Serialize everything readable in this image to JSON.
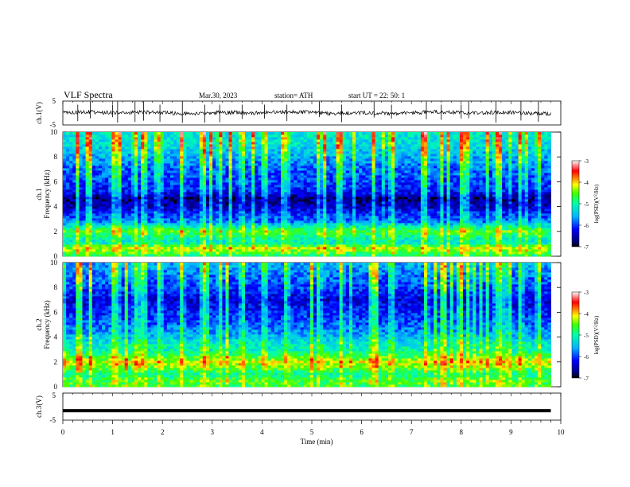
{
  "header": {
    "title": "VLF  Spectra",
    "date": "Mar.30, 2023",
    "station": "station= ATH",
    "start": "start  UT  =    22: 50: 1"
  },
  "chart_data": [
    {
      "type": "line",
      "name": "ch1-waveform",
      "ylabel": "ch.1(V)",
      "ylim": [
        -5,
        5
      ],
      "yticks": [
        "5",
        "-5"
      ],
      "xlim": [
        0,
        10
      ],
      "spikes_min": [
        0.3,
        0.55,
        1.0,
        1.1,
        1.45,
        1.62,
        1.95,
        2.4,
        2.85,
        3.15,
        3.6,
        4.05,
        4.5,
        5.15,
        5.6,
        6.25,
        6.6,
        7.3,
        7.6,
        8.0,
        8.15,
        8.7,
        9.2,
        9.55
      ]
    },
    {
      "type": "heatmap",
      "name": "ch1-spectrogram",
      "ylabel": "ch.1\nFrequency  (kHz)",
      "xlim": [
        0,
        10
      ],
      "ylim": [
        0,
        10
      ],
      "yticks": [
        "0",
        "2",
        "4",
        "6",
        "8",
        "10"
      ],
      "colorbar": {
        "label": "log(PSD)(V²/Hz)",
        "ticks": [
          "-3",
          "-4",
          "-5",
          "-6",
          "-7"
        ],
        "range": [
          -7,
          -3
        ]
      },
      "freq_profile_khz": [
        [
          0,
          -5.0
        ],
        [
          0.3,
          -4.6
        ],
        [
          0.7,
          -4.3
        ],
        [
          1.1,
          -5.2
        ],
        [
          1.6,
          -5.0
        ],
        [
          2.0,
          -4.6
        ],
        [
          2.3,
          -5.0
        ],
        [
          2.8,
          -5.8
        ],
        [
          3.4,
          -6.1
        ],
        [
          4.0,
          -6.5
        ],
        [
          4.7,
          -6.7
        ],
        [
          5.2,
          -6.2
        ],
        [
          6.0,
          -6.0
        ],
        [
          7.0,
          -5.9
        ],
        [
          8.0,
          -5.6
        ],
        [
          9.0,
          -5.3
        ],
        [
          10,
          -5.2
        ]
      ]
    },
    {
      "type": "heatmap",
      "name": "ch2-spectrogram",
      "ylabel": "ch.2\nFrequency  (kHz)",
      "xlim": [
        0,
        10
      ],
      "ylim": [
        0,
        10
      ],
      "yticks": [
        "0",
        "2",
        "4",
        "6",
        "8",
        "10"
      ],
      "colorbar": {
        "label": "log(PSD)(V²/Hz)",
        "ticks": [
          "-3",
          "-4",
          "-5",
          "-6",
          "-7"
        ],
        "range": [
          -7,
          -3
        ]
      },
      "freq_profile_khz": [
        [
          0,
          -4.7
        ],
        [
          0.5,
          -4.6
        ],
        [
          1.0,
          -5.0
        ],
        [
          1.6,
          -4.5
        ],
        [
          2.0,
          -4.2
        ],
        [
          2.5,
          -4.7
        ],
        [
          3.0,
          -5.1
        ],
        [
          3.5,
          -5.2
        ],
        [
          4.0,
          -5.5
        ],
        [
          5.0,
          -5.9
        ],
        [
          6.0,
          -6.1
        ],
        [
          7.0,
          -6.4
        ],
        [
          8.0,
          -6.0
        ],
        [
          9.0,
          -5.8
        ],
        [
          10,
          -5.6
        ]
      ]
    },
    {
      "type": "line",
      "name": "ch3-waveform",
      "ylabel": "ch.3(V)",
      "ylim": [
        -5,
        5
      ],
      "yticks": [
        "5",
        "-5"
      ],
      "xlim": [
        0,
        10
      ],
      "level_v": -1.5
    }
  ],
  "xaxis": {
    "label": "Time  (min)",
    "ticks": [
      "0",
      "1",
      "2",
      "3",
      "4",
      "5",
      "6",
      "7",
      "8",
      "9",
      "10"
    ],
    "range": [
      0,
      10
    ]
  }
}
